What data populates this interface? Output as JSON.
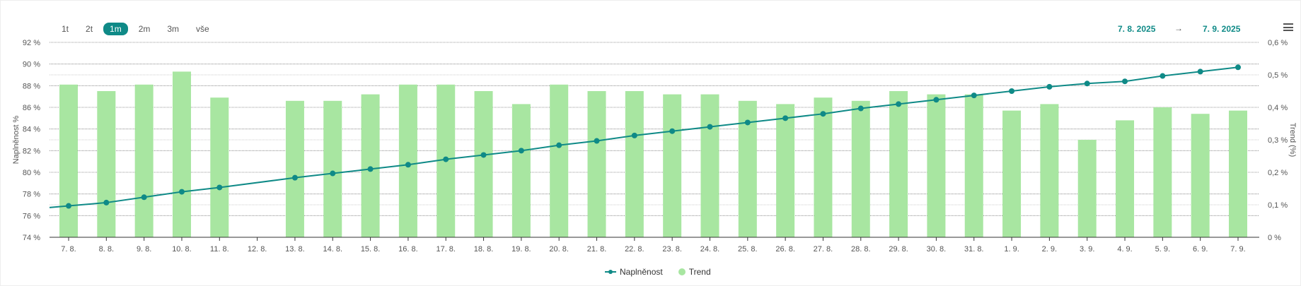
{
  "range_buttons": [
    {
      "label": "1t",
      "active": false
    },
    {
      "label": "2t",
      "active": false
    },
    {
      "label": "1m",
      "active": true
    },
    {
      "label": "2m",
      "active": false
    },
    {
      "label": "3m",
      "active": false
    },
    {
      "label": "vše",
      "active": false
    }
  ],
  "date_range": {
    "from": "7. 8. 2025",
    "arrow": "→",
    "to": "7. 9. 2025"
  },
  "colors": {
    "line": "#0f8a87",
    "bars": "#a8e6a1",
    "grid": "#555555"
  },
  "chart_data": {
    "type": "bar+line",
    "categories": [
      "7. 8.",
      "8. 8.",
      "9. 8.",
      "10. 8.",
      "11. 8.",
      "12. 8.",
      "13. 8.",
      "14. 8.",
      "15. 8.",
      "16. 8.",
      "17. 8.",
      "18. 8.",
      "19. 8.",
      "20. 8.",
      "21. 8.",
      "22. 8.",
      "23. 8.",
      "24. 8.",
      "25. 8.",
      "26. 8.",
      "27. 8.",
      "28. 8.",
      "29. 8.",
      "30. 8.",
      "31. 8.",
      "1. 9.",
      "2. 9.",
      "3. 9.",
      "4. 9.",
      "5. 9.",
      "6. 9.",
      "7. 9."
    ],
    "series": [
      {
        "name": "Naplněnost",
        "type": "line",
        "axis": "left",
        "values": [
          76.9,
          77.2,
          77.7,
          78.2,
          78.6,
          null,
          79.5,
          79.9,
          80.3,
          80.7,
          81.2,
          81.6,
          82.0,
          82.5,
          82.9,
          83.4,
          83.8,
          84.2,
          84.6,
          85.0,
          85.4,
          85.9,
          86.3,
          86.7,
          87.1,
          87.5,
          87.9,
          88.2,
          88.4,
          88.9,
          89.3,
          89.7
        ]
      },
      {
        "name": "Trend",
        "type": "bar",
        "axis": "right",
        "values": [
          0.47,
          0.45,
          0.47,
          0.51,
          0.43,
          null,
          0.42,
          0.42,
          0.44,
          0.47,
          0.47,
          0.45,
          0.41,
          0.47,
          0.45,
          0.45,
          0.44,
          0.44,
          0.42,
          0.41,
          0.43,
          0.42,
          0.45,
          0.44,
          0.44,
          0.39,
          0.41,
          0.3,
          0.36,
          0.4,
          0.38,
          0.39
        ]
      }
    ],
    "y_left": {
      "label": "Naplněnost %",
      "range": [
        74,
        92
      ],
      "ticks": [
        "74 %",
        "76 %",
        "78 %",
        "80 %",
        "82 %",
        "84 %",
        "86 %",
        "88 %",
        "90 %",
        "92 %"
      ]
    },
    "y_right": {
      "label": "Trend (%)",
      "range": [
        0,
        0.6
      ],
      "ticks": [
        "0 %",
        "0,1 %",
        "0,2 %",
        "0,3 %",
        "0,4 %",
        "0,5 %",
        "0,6 %"
      ]
    },
    "grid": true,
    "legend_position": "bottom"
  }
}
